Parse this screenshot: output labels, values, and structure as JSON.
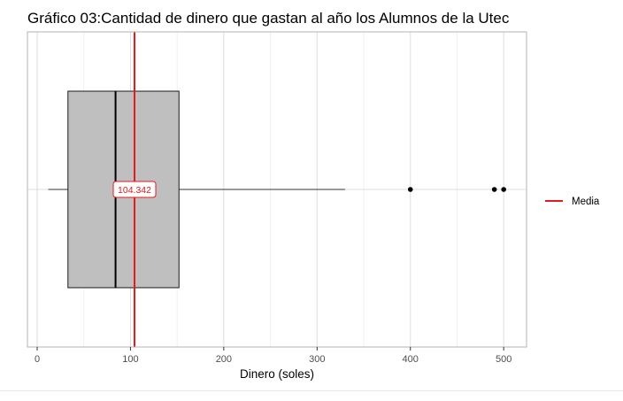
{
  "chart_data": {
    "type": "boxplot",
    "title": "Gráfico 03:Cantidad de dinero que gastan al año los Alumnos de la Utec",
    "xlabel": "Dinero (soles)",
    "ylabel": "",
    "xlim": [
      -10,
      525
    ],
    "x_ticks": [
      0,
      100,
      200,
      300,
      400,
      500
    ],
    "x_tick_labels": [
      "0",
      "100",
      "200",
      "300",
      "400",
      "500"
    ],
    "grid": true,
    "box": {
      "whisker_low": 12,
      "q1": 33,
      "median": 84,
      "q3": 152,
      "whisker_high": 330,
      "outliers": [
        400,
        490,
        500
      ]
    },
    "mean": {
      "value": 104.342,
      "label": "104.342"
    },
    "legend": {
      "label": "Media",
      "position": "right"
    },
    "colors": {
      "box_fill": "#bfbfbf",
      "mean_line": "#e41a1c",
      "grid": "#dedede",
      "panel_border": "#b3b3b3"
    }
  }
}
